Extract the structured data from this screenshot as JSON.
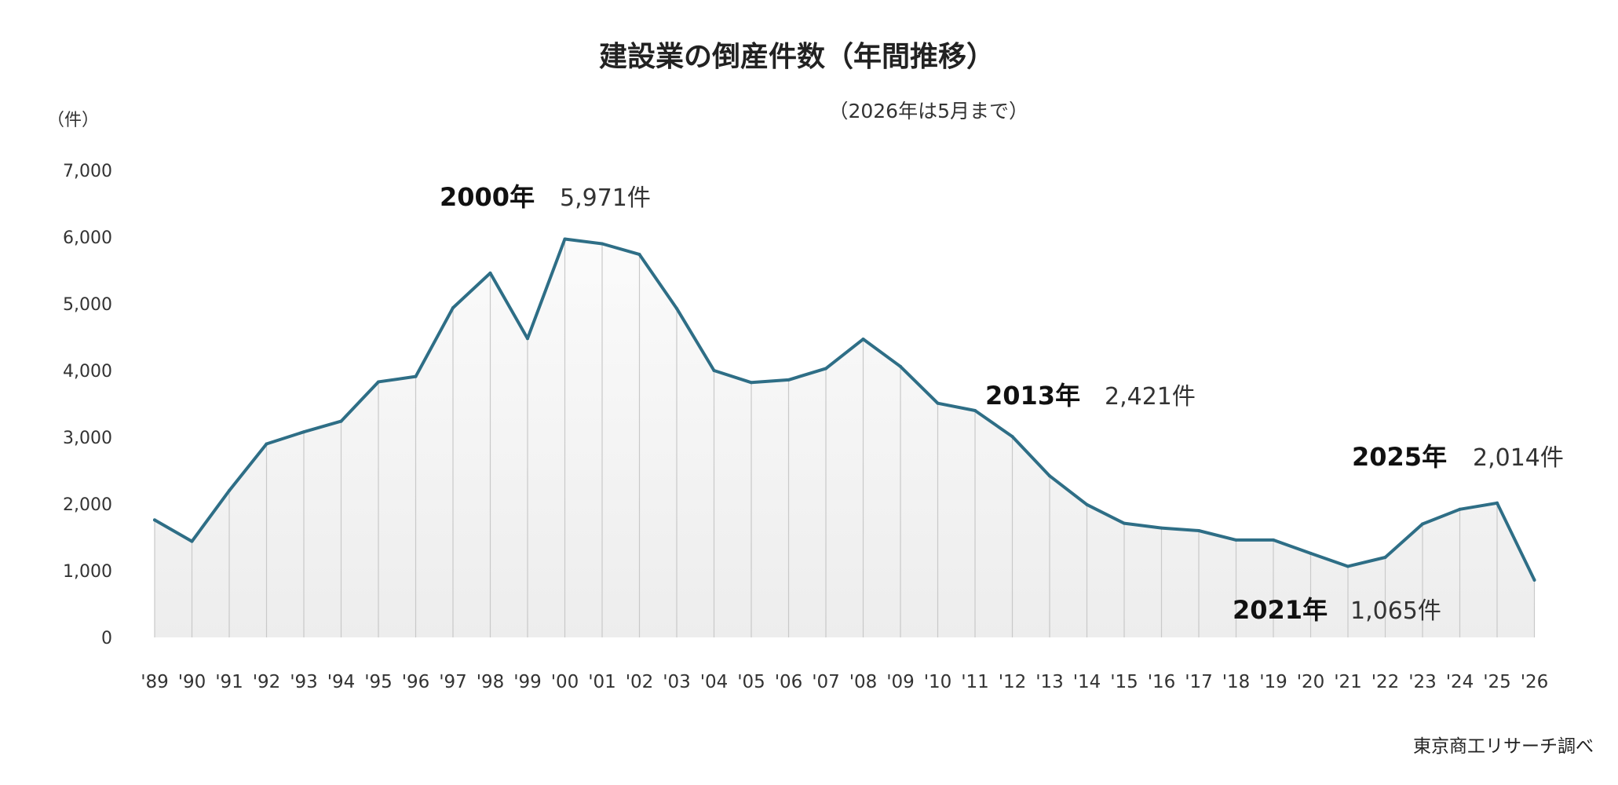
{
  "chart_data": {
    "type": "area",
    "title": "建設業の倒産件数（年間推移）",
    "subtitle": "（2026年は5月まで）",
    "ylabel": "（件）",
    "source": "東京商工リサーチ調べ",
    "ylim": [
      0,
      7000
    ],
    "yticks": [
      "0",
      "1,000",
      "2,000",
      "3,000",
      "4,000",
      "5,000",
      "6,000",
      "7,000"
    ],
    "categories": [
      "'89",
      "'90",
      "'91",
      "'92",
      "'93",
      "'94",
      "'95",
      "'96",
      "'97",
      "'98",
      "'99",
      "'00",
      "'01",
      "'02",
      "'03",
      "'04",
      "'05",
      "'06",
      "'07",
      "'08",
      "'09",
      "'10",
      "'11",
      "'12",
      "'13",
      "'14",
      "'15",
      "'16",
      "'17",
      "'18",
      "'19",
      "'20",
      "'21",
      "'22",
      "'23",
      "'24",
      "'25",
      "'26"
    ],
    "values": [
      1760,
      1440,
      2200,
      2900,
      3080,
      3240,
      3830,
      3910,
      4940,
      5460,
      4480,
      5971,
      5900,
      5740,
      4930,
      4000,
      3820,
      3860,
      4030,
      4470,
      4060,
      3510,
      3400,
      3010,
      2421,
      1990,
      1710,
      1640,
      1600,
      1460,
      1460,
      1260,
      1065,
      1200,
      1700,
      1920,
      2014,
      860
    ],
    "grid": false,
    "line_color": "#2e6e86",
    "fill_color": "#f0f0f0",
    "annotations": [
      {
        "year_label": "2000年",
        "value_label": "5,971件"
      },
      {
        "year_label": "2013年",
        "value_label": "2,421件"
      },
      {
        "year_label": "2025年",
        "value_label": "2,014件"
      },
      {
        "year_label": "2021年",
        "value_label": "1,065件"
      }
    ]
  }
}
